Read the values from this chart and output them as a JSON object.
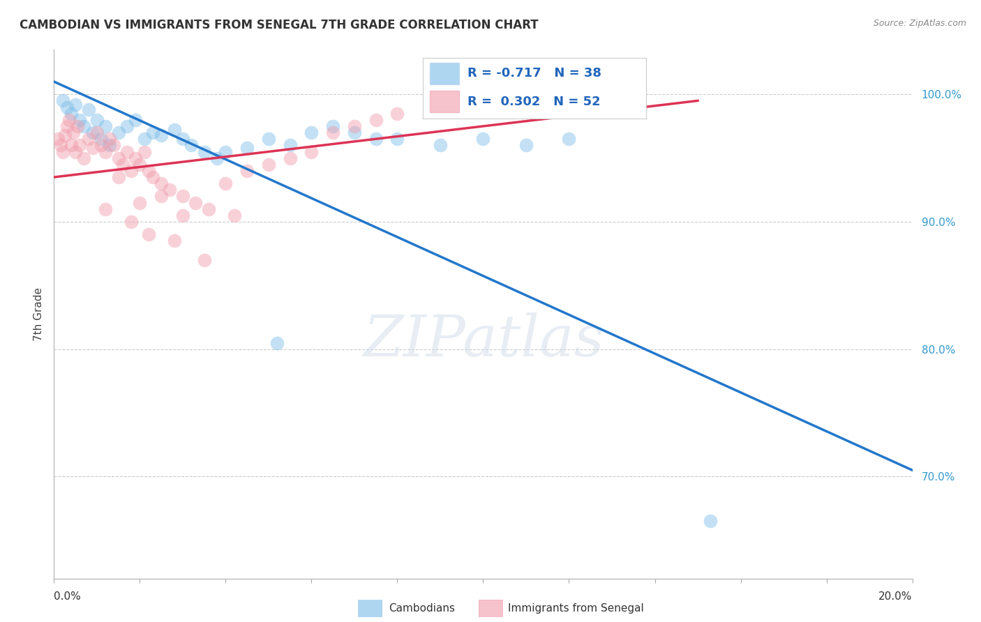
{
  "title": "CAMBODIAN VS IMMIGRANTS FROM SENEGAL 7TH GRADE CORRELATION CHART",
  "source": "Source: ZipAtlas.com",
  "ylabel": "7th Grade",
  "xmin": 0.0,
  "xmax": 20.0,
  "ymin": 62.0,
  "ymax": 103.5,
  "yticks": [
    70.0,
    80.0,
    90.0,
    100.0
  ],
  "legend_R_blue": "-0.717",
  "legend_N_blue": "38",
  "legend_R_pink": "0.302",
  "legend_N_pink": "52",
  "blue_color": "#7bbce8",
  "pink_color": "#f09aaa",
  "trend_blue_color": "#2277cc",
  "trend_pink_color": "#dd3355",
  "watermark": "ZIPatlas",
  "background_color": "#ffffff",
  "grid_color": "#cccccc",
  "blue_trend_x0": 0.0,
  "blue_trend_y0": 101.0,
  "blue_trend_x1": 20.0,
  "blue_trend_y1": 70.5,
  "pink_trend_x0": 0.0,
  "pink_trend_y0": 93.5,
  "pink_trend_x1": 15.0,
  "pink_trend_y1": 99.5,
  "blue_x": [
    0.2,
    0.3,
    0.4,
    0.5,
    0.6,
    0.7,
    0.8,
    0.9,
    1.0,
    1.1,
    1.2,
    1.3,
    1.5,
    1.7,
    1.9,
    2.1,
    2.3,
    2.5,
    2.8,
    3.0,
    3.2,
    3.5,
    3.8,
    4.0,
    4.5,
    5.0,
    5.5,
    6.0,
    6.5,
    7.0,
    7.5,
    8.0,
    9.0,
    10.0,
    11.0,
    12.0,
    5.2,
    15.3
  ],
  "blue_y": [
    99.5,
    99.0,
    98.5,
    99.2,
    98.0,
    97.5,
    98.8,
    97.0,
    98.0,
    96.5,
    97.5,
    96.0,
    97.0,
    97.5,
    98.0,
    96.5,
    97.0,
    96.8,
    97.2,
    96.5,
    96.0,
    95.5,
    95.0,
    95.5,
    95.8,
    96.5,
    96.0,
    97.0,
    97.5,
    97.0,
    96.5,
    96.5,
    96.0,
    96.5,
    96.0,
    96.5,
    80.5,
    66.5
  ],
  "pink_x": [
    0.1,
    0.15,
    0.2,
    0.25,
    0.3,
    0.35,
    0.4,
    0.45,
    0.5,
    0.55,
    0.6,
    0.7,
    0.8,
    0.9,
    1.0,
    1.1,
    1.2,
    1.3,
    1.4,
    1.5,
    1.6,
    1.7,
    1.8,
    1.9,
    2.0,
    2.1,
    2.2,
    2.3,
    2.5,
    2.7,
    3.0,
    3.3,
    3.6,
    4.0,
    4.5,
    5.0,
    5.5,
    6.0,
    6.5,
    7.0,
    7.5,
    8.0,
    1.2,
    1.8,
    2.2,
    2.8,
    3.5,
    2.5,
    3.0,
    1.5,
    2.0,
    4.2
  ],
  "pink_y": [
    96.5,
    96.0,
    95.5,
    96.8,
    97.5,
    98.0,
    96.0,
    97.0,
    95.5,
    97.5,
    96.0,
    95.0,
    96.5,
    95.8,
    97.0,
    96.0,
    95.5,
    96.5,
    96.0,
    95.0,
    94.5,
    95.5,
    94.0,
    95.0,
    94.5,
    95.5,
    94.0,
    93.5,
    93.0,
    92.5,
    92.0,
    91.5,
    91.0,
    93.0,
    94.0,
    94.5,
    95.0,
    95.5,
    97.0,
    97.5,
    98.0,
    98.5,
    91.0,
    90.0,
    89.0,
    88.5,
    87.0,
    92.0,
    90.5,
    93.5,
    91.5,
    90.5
  ]
}
